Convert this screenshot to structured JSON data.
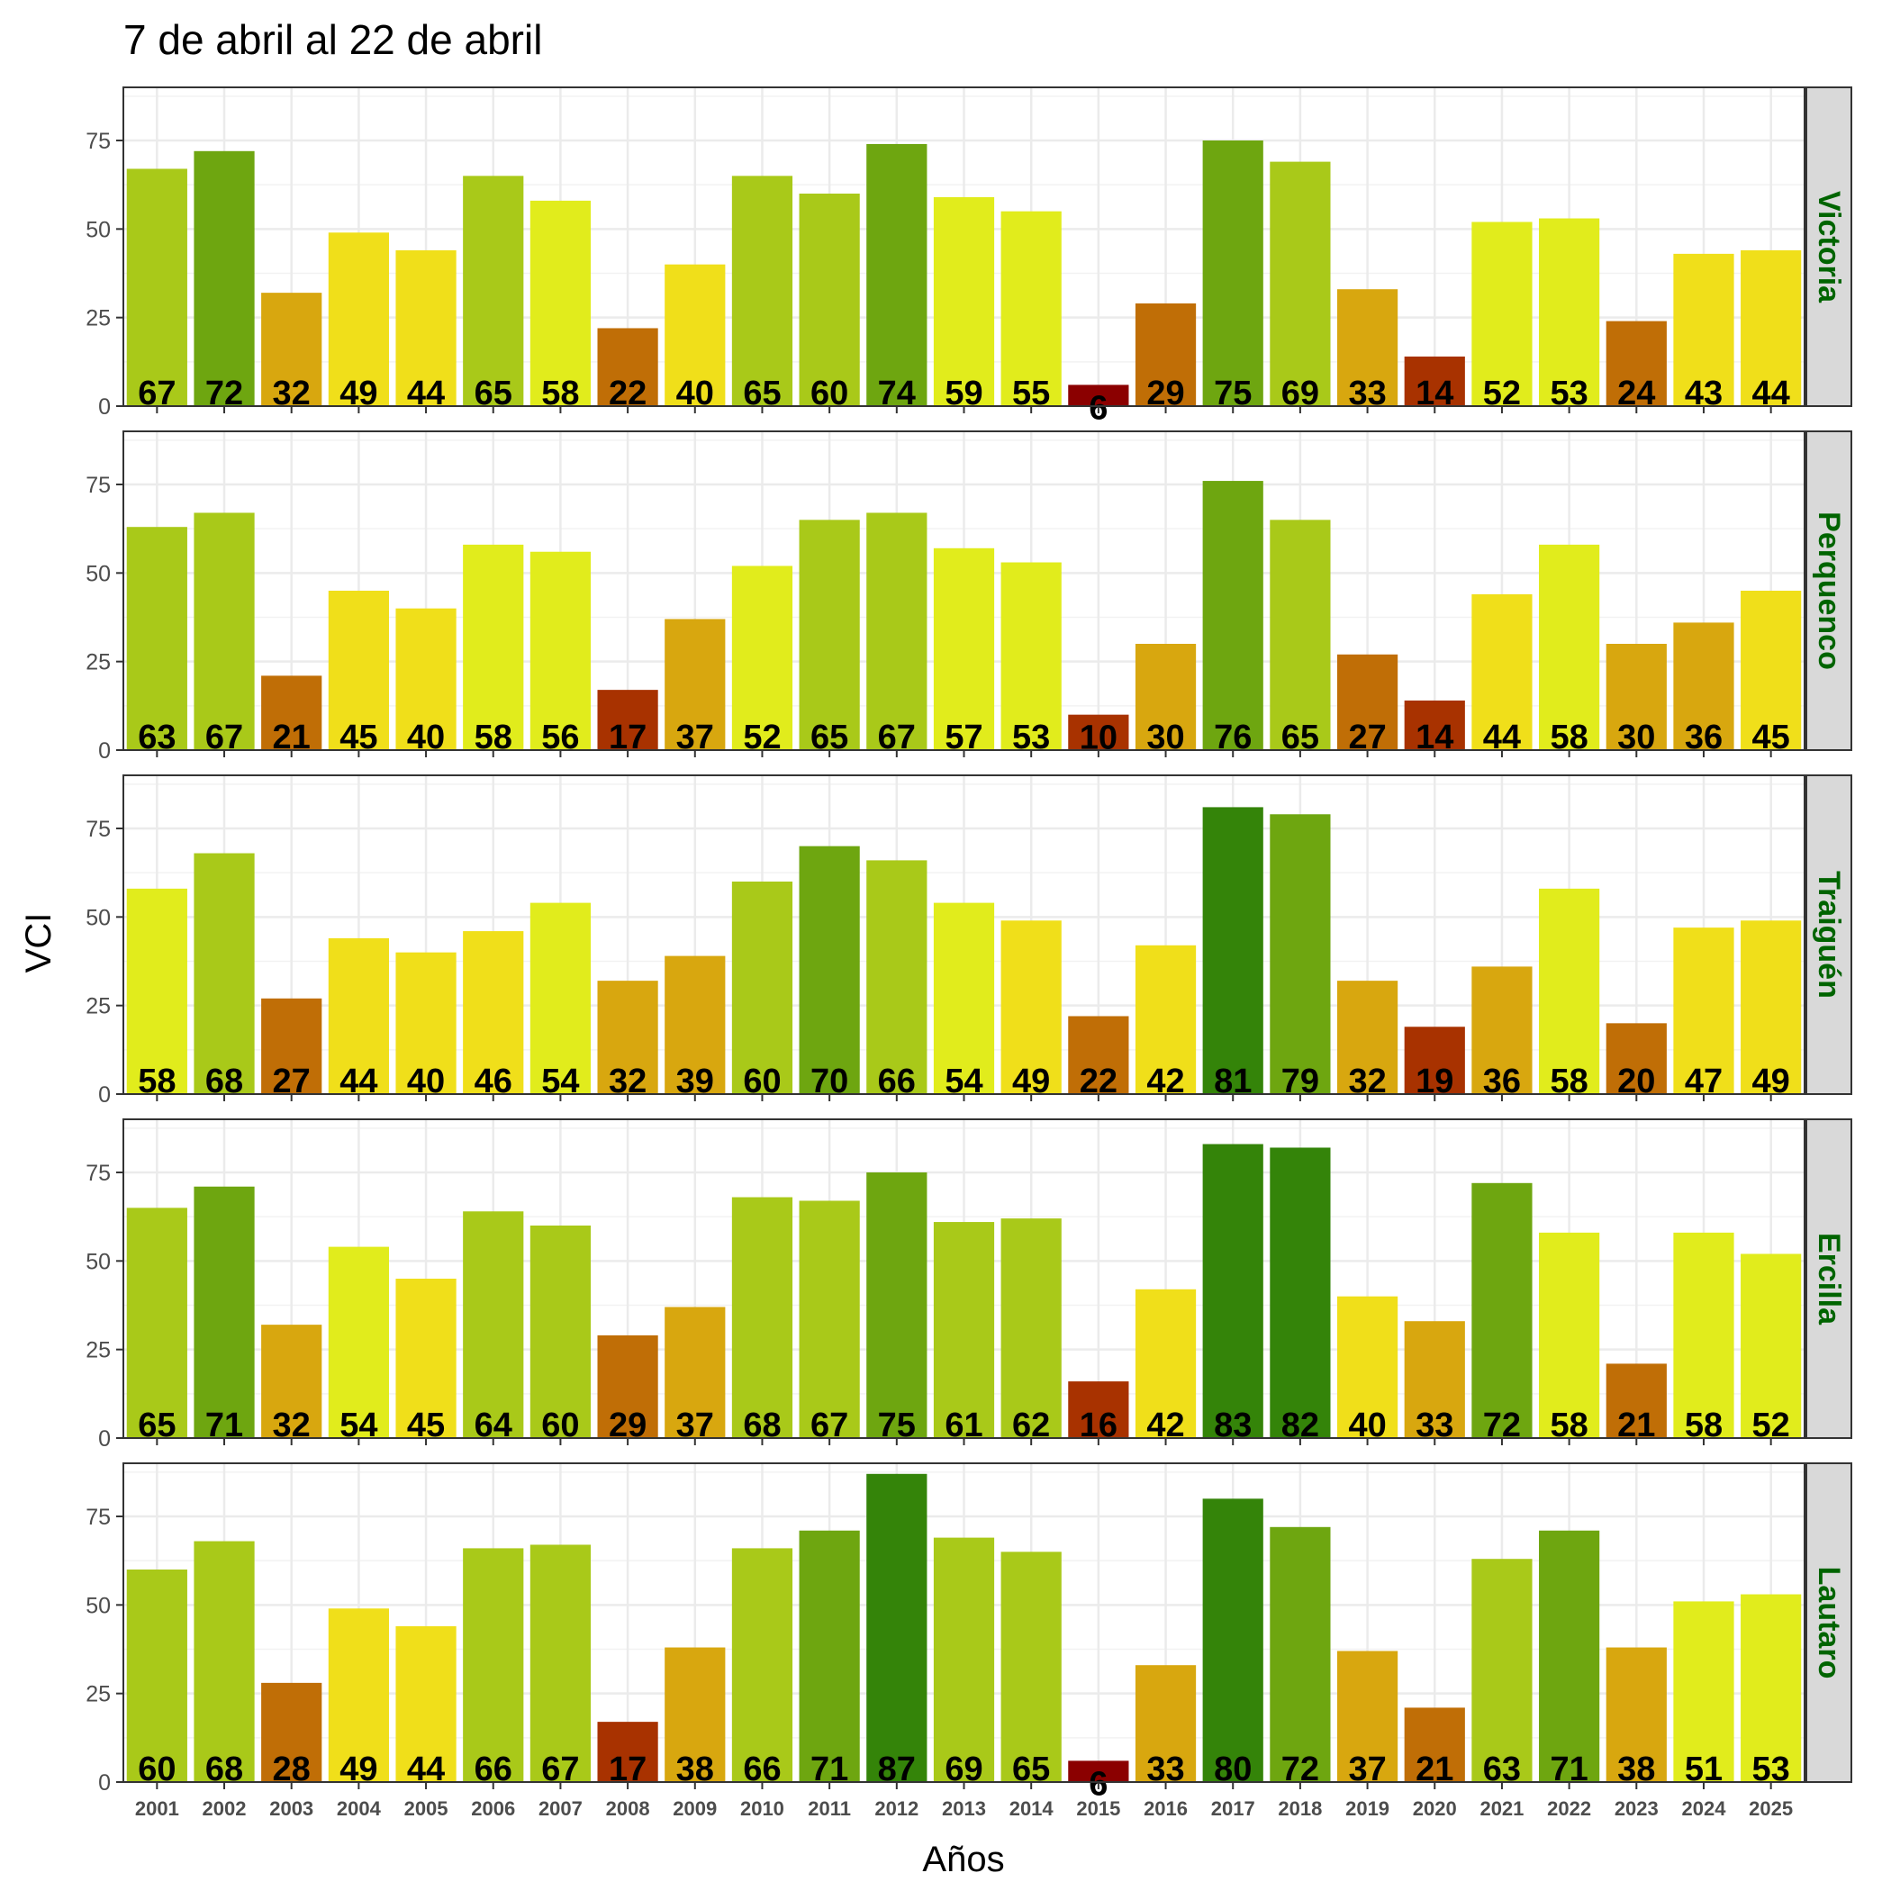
{
  "chart_data": {
    "type": "bar",
    "title": "7 de abril al 22 de abril",
    "xlabel": "Años",
    "ylabel": "VCI",
    "ylim": [
      0,
      90
    ],
    "yticks": [
      "0",
      "25",
      "50",
      "75"
    ],
    "categories": [
      "2001",
      "2002",
      "2003",
      "2004",
      "2005",
      "2006",
      "2007",
      "2008",
      "2009",
      "2010",
      "2011",
      "2012",
      "2013",
      "2014",
      "2015",
      "2016",
      "2017",
      "2018",
      "2019",
      "2020",
      "2021",
      "2022",
      "2023",
      "2024",
      "2025"
    ],
    "grid": true,
    "facets": [
      {
        "name": "Victoria",
        "values": [
          67,
          72,
          32,
          49,
          44,
          65,
          58,
          22,
          40,
          65,
          60,
          74,
          59,
          55,
          6,
          29,
          75,
          69,
          33,
          14,
          52,
          53,
          24,
          43,
          44
        ]
      },
      {
        "name": "Perquenco",
        "values": [
          63,
          67,
          21,
          45,
          40,
          58,
          56,
          17,
          37,
          52,
          65,
          67,
          57,
          53,
          10,
          30,
          76,
          65,
          27,
          14,
          44,
          58,
          30,
          36,
          45
        ]
      },
      {
        "name": "Traiguén",
        "values": [
          58,
          68,
          27,
          44,
          40,
          46,
          54,
          32,
          39,
          60,
          70,
          66,
          54,
          49,
          22,
          42,
          81,
          79,
          32,
          19,
          36,
          58,
          20,
          47,
          49
        ]
      },
      {
        "name": "Ercilla",
        "values": [
          65,
          71,
          32,
          54,
          45,
          64,
          60,
          29,
          37,
          68,
          67,
          75,
          61,
          62,
          16,
          42,
          83,
          82,
          40,
          33,
          72,
          58,
          21,
          58,
          52
        ]
      },
      {
        "name": "Lautaro",
        "values": [
          60,
          68,
          28,
          49,
          44,
          66,
          67,
          17,
          38,
          66,
          71,
          87,
          69,
          65,
          6,
          33,
          80,
          72,
          37,
          21,
          63,
          71,
          38,
          51,
          53
        ]
      }
    ],
    "color_scale": [
      {
        "min": 0,
        "max": 10,
        "color": "#8b0000"
      },
      {
        "min": 10,
        "max": 20,
        "color": "#a83200"
      },
      {
        "min": 20,
        "max": 30,
        "color": "#c06e06"
      },
      {
        "min": 30,
        "max": 40,
        "color": "#d8a70f"
      },
      {
        "min": 40,
        "max": 50,
        "color": "#f0df1a"
      },
      {
        "min": 50,
        "max": 60,
        "color": "#e1ec1c"
      },
      {
        "min": 60,
        "max": 70,
        "color": "#a9c919"
      },
      {
        "min": 70,
        "max": 80,
        "color": "#6ea610"
      },
      {
        "min": 80,
        "max": 100,
        "color": "#348409"
      }
    ],
    "strip_background": "#d9d9d9",
    "strip_text_color": "#006400"
  }
}
